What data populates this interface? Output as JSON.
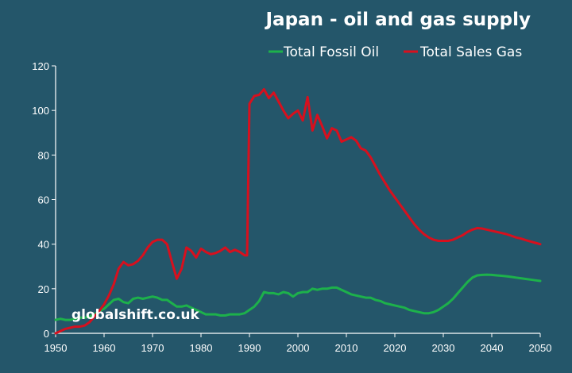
{
  "chart_data": {
    "type": "line",
    "title": "Japan - oil and gas supply",
    "xlabel": "",
    "ylabel": "",
    "xlim": [
      1950,
      2050
    ],
    "ylim": [
      0,
      120
    ],
    "x_ticks": [
      1950,
      1960,
      1970,
      1980,
      1990,
      2000,
      2010,
      2020,
      2030,
      2040,
      2050
    ],
    "y_ticks": [
      0,
      20,
      40,
      60,
      80,
      100,
      120
    ],
    "grid": false,
    "legend_position": "top-right",
    "watermark": "globalshift.co.uk",
    "colors": {
      "background": "#24566a",
      "axis": "#ffffff"
    },
    "series": [
      {
        "name": "Total Fossil Oil",
        "color": "#1db14b",
        "points": [
          [
            1950,
            6
          ],
          [
            1951,
            6.5
          ],
          [
            1952,
            6
          ],
          [
            1953,
            6
          ],
          [
            1954,
            6.5
          ],
          [
            1955,
            7
          ],
          [
            1956,
            7
          ],
          [
            1957,
            7.5
          ],
          [
            1958,
            8.5
          ],
          [
            1959,
            10
          ],
          [
            1960,
            11
          ],
          [
            1961,
            13
          ],
          [
            1962,
            15
          ],
          [
            1963,
            15.5
          ],
          [
            1964,
            14
          ],
          [
            1965,
            13.5
          ],
          [
            1966,
            15.5
          ],
          [
            1967,
            16
          ],
          [
            1968,
            15.5
          ],
          [
            1969,
            16
          ],
          [
            1970,
            16.5
          ],
          [
            1971,
            16
          ],
          [
            1972,
            15
          ],
          [
            1973,
            15
          ],
          [
            1974,
            13.5
          ],
          [
            1975,
            12
          ],
          [
            1976,
            12
          ],
          [
            1977,
            12.5
          ],
          [
            1978,
            11.5
          ],
          [
            1979,
            10.5
          ],
          [
            1980,
            9.5
          ],
          [
            1981,
            8.5
          ],
          [
            1982,
            8.5
          ],
          [
            1983,
            8.5
          ],
          [
            1984,
            8
          ],
          [
            1985,
            8
          ],
          [
            1986,
            8.5
          ],
          [
            1987,
            8.5
          ],
          [
            1988,
            8.5
          ],
          [
            1989,
            9
          ],
          [
            1990,
            10.5
          ],
          [
            1991,
            12
          ],
          [
            1992,
            14.5
          ],
          [
            1993,
            18.5
          ],
          [
            1994,
            18
          ],
          [
            1995,
            18
          ],
          [
            1996,
            17.5
          ],
          [
            1997,
            18.5
          ],
          [
            1998,
            18
          ],
          [
            1999,
            16.5
          ],
          [
            2000,
            18
          ],
          [
            2001,
            18.5
          ],
          [
            2002,
            18.5
          ],
          [
            2003,
            20
          ],
          [
            2004,
            19.5
          ],
          [
            2005,
            20
          ],
          [
            2006,
            20
          ],
          [
            2007,
            20.5
          ],
          [
            2008,
            20.5
          ],
          [
            2009,
            19.5
          ],
          [
            2010,
            18.5
          ],
          [
            2011,
            17.5
          ],
          [
            2012,
            17
          ],
          [
            2013,
            16.5
          ],
          [
            2014,
            16
          ],
          [
            2015,
            16
          ],
          [
            2016,
            15
          ],
          [
            2017,
            14.5
          ],
          [
            2018,
            13.5
          ],
          [
            2019,
            13
          ],
          [
            2020,
            12.5
          ],
          [
            2021,
            12
          ],
          [
            2022,
            11.5
          ],
          [
            2023,
            10.5
          ],
          [
            2024,
            10
          ],
          [
            2025,
            9.5
          ],
          [
            2026,
            9
          ],
          [
            2027,
            9
          ],
          [
            2028,
            9.5
          ],
          [
            2029,
            10.5
          ],
          [
            2030,
            12
          ],
          [
            2031,
            13.5
          ],
          [
            2032,
            15.5
          ],
          [
            2033,
            18
          ],
          [
            2034,
            20.5
          ],
          [
            2035,
            23
          ],
          [
            2036,
            25
          ],
          [
            2037,
            26
          ],
          [
            2038,
            26.2
          ],
          [
            2039,
            26.3
          ],
          [
            2040,
            26.2
          ],
          [
            2041,
            26
          ],
          [
            2042,
            25.8
          ],
          [
            2043,
            25.6
          ],
          [
            2044,
            25.3
          ],
          [
            2045,
            25
          ],
          [
            2046,
            24.7
          ],
          [
            2047,
            24.4
          ],
          [
            2048,
            24.1
          ],
          [
            2049,
            23.8
          ],
          [
            2050,
            23.5
          ]
        ]
      },
      {
        "name": "Total Sales Gas",
        "color": "#d7101e",
        "points": [
          [
            1950,
            0
          ],
          [
            1951,
            1
          ],
          [
            1952,
            2
          ],
          [
            1953,
            2.5
          ],
          [
            1954,
            3
          ],
          [
            1955,
            3
          ],
          [
            1956,
            3.5
          ],
          [
            1957,
            5
          ],
          [
            1958,
            7.5
          ],
          [
            1959,
            10
          ],
          [
            1960,
            13
          ],
          [
            1961,
            17
          ],
          [
            1962,
            22
          ],
          [
            1963,
            29
          ],
          [
            1964,
            32
          ],
          [
            1965,
            30.5
          ],
          [
            1966,
            31
          ],
          [
            1967,
            32.5
          ],
          [
            1968,
            35
          ],
          [
            1969,
            38.5
          ],
          [
            1970,
            41
          ],
          [
            1971,
            42
          ],
          [
            1972,
            42
          ],
          [
            1973,
            40
          ],
          [
            1974,
            32
          ],
          [
            1975,
            24.5
          ],
          [
            1976,
            29
          ],
          [
            1977,
            38.5
          ],
          [
            1978,
            37
          ],
          [
            1979,
            34
          ],
          [
            1980,
            38
          ],
          [
            1981,
            36.5
          ],
          [
            1982,
            35.5
          ],
          [
            1983,
            36
          ],
          [
            1984,
            37
          ],
          [
            1985,
            38.5
          ],
          [
            1986,
            36.5
          ],
          [
            1987,
            37.5
          ],
          [
            1988,
            36.5
          ],
          [
            1989,
            35
          ],
          [
            1989.5,
            35
          ],
          [
            1990,
            103
          ],
          [
            1991,
            106.5
          ],
          [
            1992,
            107
          ],
          [
            1993,
            109.5
          ],
          [
            1994,
            105.5
          ],
          [
            1995,
            108
          ],
          [
            1996,
            104
          ],
          [
            1997,
            100
          ],
          [
            1998,
            96.5
          ],
          [
            1999,
            98.5
          ],
          [
            2000,
            100
          ],
          [
            2001,
            95.5
          ],
          [
            2002,
            106
          ],
          [
            2003,
            91
          ],
          [
            2004,
            98
          ],
          [
            2005,
            93
          ],
          [
            2006,
            87.5
          ],
          [
            2007,
            92
          ],
          [
            2008,
            91
          ],
          [
            2009,
            86
          ],
          [
            2010,
            87
          ],
          [
            2011,
            88
          ],
          [
            2012,
            86.5
          ],
          [
            2013,
            83
          ],
          [
            2014,
            82
          ],
          [
            2015,
            79
          ],
          [
            2016,
            75
          ],
          [
            2017,
            71
          ],
          [
            2018,
            67.5
          ],
          [
            2019,
            64
          ],
          [
            2020,
            61
          ],
          [
            2021,
            58
          ],
          [
            2022,
            55
          ],
          [
            2023,
            52
          ],
          [
            2024,
            49
          ],
          [
            2025,
            46.5
          ],
          [
            2026,
            44.5
          ],
          [
            2027,
            43
          ],
          [
            2028,
            42
          ],
          [
            2029,
            41.5
          ],
          [
            2030,
            41.5
          ],
          [
            2031,
            41.5
          ],
          [
            2032,
            42
          ],
          [
            2033,
            43
          ],
          [
            2034,
            44
          ],
          [
            2035,
            45.5
          ],
          [
            2036,
            46.5
          ],
          [
            2037,
            47.2
          ],
          [
            2038,
            47
          ],
          [
            2039,
            46.5
          ],
          [
            2040,
            46
          ],
          [
            2041,
            45.5
          ],
          [
            2042,
            45
          ],
          [
            2043,
            44.5
          ],
          [
            2044,
            43.8
          ],
          [
            2045,
            43
          ],
          [
            2046,
            42.5
          ],
          [
            2047,
            41.8
          ],
          [
            2048,
            41.2
          ],
          [
            2049,
            40.6
          ],
          [
            2050,
            40
          ]
        ]
      }
    ]
  }
}
